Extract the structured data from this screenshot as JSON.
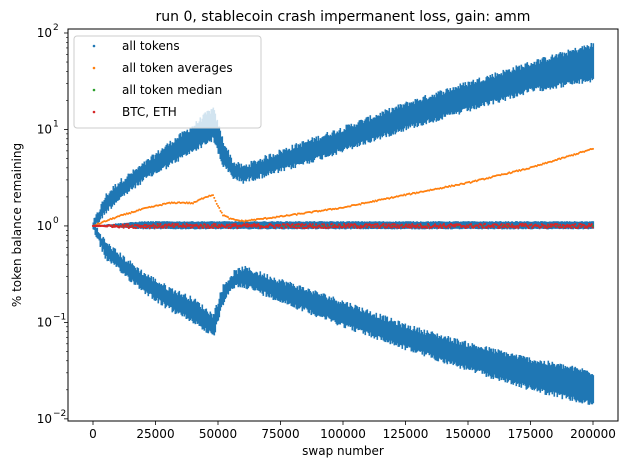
{
  "chart_data": {
    "type": "scatter",
    "title": "run 0, stablecoin crash impermanent loss, gain: amm",
    "xlabel": "swap number",
    "ylabel": "% token balance remaining",
    "xlim": [
      -10000,
      210000
    ],
    "ylim": [
      0.0095,
      110
    ],
    "yscale": "log",
    "x_ticks": [
      0,
      25000,
      50000,
      75000,
      100000,
      125000,
      150000,
      175000,
      200000
    ],
    "x_tick_labels": [
      "0",
      "25000",
      "50000",
      "75000",
      "100000",
      "125000",
      "150000",
      "175000",
      "200000"
    ],
    "y_major_ticks": [
      0.01,
      0.1,
      1,
      10,
      100
    ],
    "y_tick_labels": [
      "10",
      "10",
      "10",
      "10",
      "10"
    ],
    "y_tick_exponents": [
      "−2",
      "−1",
      "0",
      "1",
      "2"
    ],
    "legend_position": "upper-left",
    "grid": false,
    "series": [
      {
        "name": "all tokens",
        "color": "#1f77b4",
        "upper_envelope": {
          "x": [
            0,
            5000,
            10000,
            20000,
            30000,
            40000,
            46000,
            48000,
            52000,
            56000,
            60000,
            75000,
            100000,
            125000,
            150000,
            175000,
            200000
          ],
          "y_low": [
            1.0,
            1.5,
            2.0,
            3.2,
            4.5,
            6.5,
            8.0,
            8.5,
            4.5,
            3.4,
            3.1,
            4.0,
            6.5,
            11,
            17,
            27,
            35
          ],
          "y_high": [
            1.0,
            1.9,
            2.6,
            4.0,
            6.5,
            10,
            14,
            15,
            7.0,
            4.2,
            3.8,
            5.5,
            9.5,
            17,
            28,
            45,
            70
          ]
        },
        "lower_envelope": {
          "x": [
            0,
            5000,
            10000,
            20000,
            30000,
            40000,
            46000,
            48000,
            52000,
            56000,
            60000,
            75000,
            100000,
            125000,
            150000,
            175000,
            200000
          ],
          "y_low": [
            1.0,
            0.5,
            0.38,
            0.23,
            0.15,
            0.11,
            0.085,
            0.075,
            0.17,
            0.25,
            0.26,
            0.18,
            0.1,
            0.058,
            0.035,
            0.022,
            0.015
          ],
          "y_high": [
            1.0,
            0.62,
            0.48,
            0.3,
            0.21,
            0.16,
            0.12,
            0.11,
            0.22,
            0.3,
            0.34,
            0.25,
            0.15,
            0.085,
            0.055,
            0.038,
            0.028
          ]
        },
        "middle_band": {
          "y_low": 0.92,
          "y_high": 1.1
        }
      },
      {
        "name": "all token averages",
        "color": "#ff7f0e",
        "x": [
          0,
          5000,
          10000,
          20000,
          30000,
          35000,
          40000,
          45000,
          48000,
          50000,
          52000,
          55000,
          60000,
          75000,
          100000,
          125000,
          150000,
          175000,
          200000
        ],
        "y": [
          1.0,
          1.12,
          1.25,
          1.5,
          1.72,
          1.75,
          1.72,
          2.0,
          2.1,
          1.6,
          1.3,
          1.18,
          1.12,
          1.25,
          1.55,
          2.1,
          2.8,
          4.0,
          6.3
        ]
      },
      {
        "name": "all token median",
        "color": "#2ca02c",
        "x": [
          0,
          50000,
          100000,
          150000,
          200000
        ],
        "y": [
          1.0,
          1.0,
          1.0,
          1.0,
          1.0
        ]
      },
      {
        "name": "BTC, ETH",
        "color": "#d62728",
        "x": [
          0,
          200000
        ],
        "y_low": 0.95,
        "y_high": 1.05
      }
    ]
  }
}
